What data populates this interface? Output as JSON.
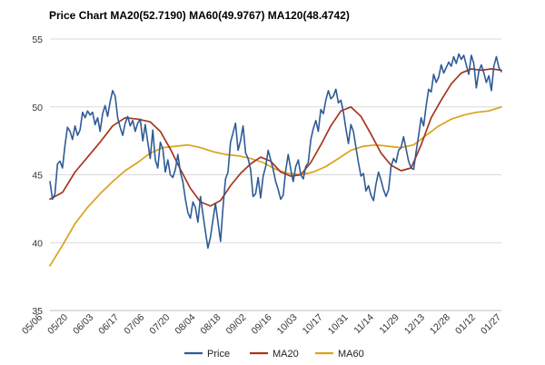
{
  "chart_data": {
    "type": "line",
    "title": "Price Chart MA20(52.7190) MA60(49.9767) MA120(48.4742)",
    "xlabel": "",
    "ylabel": "",
    "ylim": [
      35,
      55
    ],
    "yticks": [
      35,
      40,
      45,
      50,
      55
    ],
    "grid": true,
    "legend_position": "bottom",
    "x_tick_labels": [
      "05/06",
      "05/20",
      "06/03",
      "06/17",
      "07/06",
      "07/20",
      "08/04",
      "08/18",
      "09/02",
      "09/16",
      "10/03",
      "10/17",
      "10/31",
      "11/14",
      "11/29",
      "12/13",
      "12/28",
      "01/12",
      "01/27"
    ],
    "x_range": [
      0,
      180
    ],
    "series": [
      {
        "name": "Price",
        "color": "#2e5b96",
        "points": [
          [
            0,
            44.5
          ],
          [
            1,
            43.2
          ],
          [
            2,
            43.6
          ],
          [
            3,
            45.8
          ],
          [
            4,
            46.0
          ],
          [
            5,
            45.5
          ],
          [
            6,
            47.2
          ],
          [
            7,
            48.5
          ],
          [
            8,
            48.2
          ],
          [
            9,
            47.6
          ],
          [
            10,
            48.6
          ],
          [
            11,
            47.9
          ],
          [
            12,
            48.3
          ],
          [
            13,
            49.6
          ],
          [
            14,
            49.2
          ],
          [
            15,
            49.7
          ],
          [
            16,
            49.4
          ],
          [
            17,
            49.6
          ],
          [
            18,
            48.7
          ],
          [
            19,
            49.2
          ],
          [
            20,
            48.2
          ],
          [
            21,
            49.5
          ],
          [
            22,
            50.1
          ],
          [
            23,
            49.3
          ],
          [
            24,
            50.4
          ],
          [
            25,
            51.2
          ],
          [
            26,
            50.8
          ],
          [
            27,
            49.2
          ],
          [
            28,
            48.5
          ],
          [
            29,
            47.9
          ],
          [
            30,
            48.8
          ],
          [
            31,
            49.3
          ],
          [
            32,
            48.6
          ],
          [
            33,
            49.0
          ],
          [
            34,
            48.2
          ],
          [
            35,
            48.8
          ],
          [
            36,
            49.1
          ],
          [
            37,
            47.5
          ],
          [
            38,
            48.7
          ],
          [
            39,
            47.4
          ],
          [
            40,
            46.2
          ],
          [
            41,
            48.3
          ],
          [
            42,
            46.1
          ],
          [
            43,
            45.5
          ],
          [
            44,
            47.4
          ],
          [
            45,
            46.9
          ],
          [
            46,
            45.2
          ],
          [
            47,
            46.1
          ],
          [
            48,
            45.0
          ],
          [
            49,
            44.8
          ],
          [
            50,
            45.4
          ],
          [
            51,
            46.5
          ],
          [
            52,
            45.2
          ],
          [
            53,
            44.5
          ],
          [
            54,
            43.2
          ],
          [
            55,
            42.2
          ],
          [
            56,
            41.8
          ],
          [
            57,
            43.0
          ],
          [
            58,
            42.6
          ],
          [
            59,
            41.5
          ],
          [
            60,
            43.4
          ],
          [
            61,
            42.1
          ],
          [
            62,
            40.8
          ],
          [
            63,
            39.6
          ],
          [
            64,
            40.4
          ],
          [
            65,
            41.7
          ],
          [
            66,
            42.9
          ],
          [
            67,
            41.5
          ],
          [
            68,
            40.1
          ],
          [
            69,
            42.6
          ],
          [
            70,
            44.7
          ],
          [
            71,
            45.2
          ],
          [
            72,
            47.4
          ],
          [
            73,
            48.1
          ],
          [
            74,
            48.8
          ],
          [
            75,
            46.8
          ],
          [
            76,
            47.5
          ],
          [
            77,
            48.6
          ],
          [
            78,
            46.6
          ],
          [
            79,
            46.2
          ],
          [
            80,
            45.4
          ],
          [
            81,
            43.4
          ],
          [
            82,
            43.6
          ],
          [
            83,
            44.8
          ],
          [
            84,
            43.3
          ],
          [
            85,
            44.9
          ],
          [
            86,
            45.6
          ],
          [
            87,
            46.8
          ],
          [
            88,
            46.1
          ],
          [
            89,
            45.4
          ],
          [
            90,
            44.5
          ],
          [
            91,
            43.9
          ],
          [
            92,
            43.2
          ],
          [
            93,
            43.5
          ],
          [
            94,
            45.3
          ],
          [
            95,
            46.5
          ],
          [
            96,
            45.4
          ],
          [
            97,
            44.5
          ],
          [
            98,
            45.6
          ],
          [
            99,
            46.1
          ],
          [
            100,
            45.0
          ],
          [
            101,
            44.7
          ],
          [
            102,
            45.6
          ],
          [
            103,
            45.9
          ],
          [
            104,
            47.6
          ],
          [
            105,
            48.4
          ],
          [
            106,
            49.0
          ],
          [
            107,
            48.2
          ],
          [
            108,
            49.8
          ],
          [
            109,
            49.5
          ],
          [
            110,
            50.5
          ],
          [
            111,
            51.2
          ],
          [
            112,
            50.6
          ],
          [
            113,
            50.8
          ],
          [
            114,
            51.3
          ],
          [
            115,
            50.3
          ],
          [
            116,
            50.5
          ],
          [
            117,
            49.6
          ],
          [
            118,
            48.4
          ],
          [
            119,
            47.3
          ],
          [
            120,
            48.7
          ],
          [
            121,
            48.2
          ],
          [
            122,
            47.0
          ],
          [
            123,
            45.9
          ],
          [
            124,
            44.9
          ],
          [
            125,
            45.1
          ],
          [
            126,
            43.8
          ],
          [
            127,
            44.2
          ],
          [
            128,
            43.5
          ],
          [
            129,
            43.1
          ],
          [
            130,
            44.3
          ],
          [
            131,
            45.2
          ],
          [
            132,
            44.6
          ],
          [
            133,
            43.9
          ],
          [
            134,
            43.4
          ],
          [
            135,
            43.9
          ],
          [
            136,
            45.6
          ],
          [
            137,
            46.2
          ],
          [
            138,
            45.9
          ],
          [
            139,
            46.8
          ],
          [
            140,
            47.0
          ],
          [
            141,
            47.8
          ],
          [
            142,
            46.9
          ],
          [
            143,
            46.0
          ],
          [
            144,
            45.5
          ],
          [
            145,
            45.4
          ],
          [
            146,
            46.7
          ],
          [
            147,
            47.9
          ],
          [
            148,
            49.2
          ],
          [
            149,
            48.6
          ],
          [
            150,
            50.1
          ],
          [
            151,
            51.3
          ],
          [
            152,
            51.1
          ],
          [
            153,
            52.4
          ],
          [
            154,
            51.8
          ],
          [
            155,
            52.2
          ],
          [
            156,
            53.1
          ],
          [
            157,
            52.5
          ],
          [
            158,
            52.9
          ],
          [
            159,
            53.3
          ],
          [
            160,
            53.0
          ],
          [
            161,
            53.7
          ],
          [
            162,
            53.2
          ],
          [
            163,
            53.9
          ],
          [
            164,
            53.5
          ],
          [
            165,
            53.8
          ],
          [
            166,
            53.1
          ],
          [
            167,
            52.4
          ],
          [
            168,
            53.8
          ],
          [
            169,
            53.2
          ],
          [
            170,
            51.4
          ],
          [
            171,
            52.6
          ],
          [
            172,
            53.1
          ],
          [
            173,
            52.5
          ],
          [
            174,
            51.8
          ],
          [
            175,
            52.3
          ],
          [
            176,
            51.2
          ],
          [
            177,
            53.0
          ],
          [
            178,
            53.7
          ],
          [
            179,
            52.9
          ],
          [
            180,
            52.6
          ]
        ]
      },
      {
        "name": "MA20",
        "color": "#a6361f",
        "points": [
          [
            0,
            43.2
          ],
          [
            5,
            43.7
          ],
          [
            10,
            45.2
          ],
          [
            15,
            46.3
          ],
          [
            20,
            47.4
          ],
          [
            25,
            48.6
          ],
          [
            30,
            49.2
          ],
          [
            35,
            49.1
          ],
          [
            40,
            48.9
          ],
          [
            44,
            48.2
          ],
          [
            48,
            46.9
          ],
          [
            52,
            45.4
          ],
          [
            56,
            44.0
          ],
          [
            60,
            43.0
          ],
          [
            64,
            42.7
          ],
          [
            68,
            43.1
          ],
          [
            72,
            44.2
          ],
          [
            76,
            45.1
          ],
          [
            80,
            45.8
          ],
          [
            84,
            46.3
          ],
          [
            88,
            46.0
          ],
          [
            92,
            45.2
          ],
          [
            96,
            44.9
          ],
          [
            100,
            45.0
          ],
          [
            104,
            45.9
          ],
          [
            108,
            47.2
          ],
          [
            112,
            48.6
          ],
          [
            116,
            49.7
          ],
          [
            120,
            50.0
          ],
          [
            124,
            49.3
          ],
          [
            128,
            48.0
          ],
          [
            132,
            46.6
          ],
          [
            136,
            45.7
          ],
          [
            140,
            45.3
          ],
          [
            144,
            45.5
          ],
          [
            148,
            47.2
          ],
          [
            152,
            49.2
          ],
          [
            156,
            50.5
          ],
          [
            160,
            51.7
          ],
          [
            164,
            52.5
          ],
          [
            168,
            52.8
          ],
          [
            172,
            52.7
          ],
          [
            176,
            52.8
          ],
          [
            180,
            52.7
          ]
        ]
      },
      {
        "name": "MA60",
        "color": "#d9a31a",
        "points": [
          [
            0,
            38.3
          ],
          [
            5,
            39.8
          ],
          [
            10,
            41.4
          ],
          [
            15,
            42.6
          ],
          [
            20,
            43.6
          ],
          [
            25,
            44.5
          ],
          [
            30,
            45.3
          ],
          [
            35,
            45.9
          ],
          [
            40,
            46.6
          ],
          [
            45,
            47.0
          ],
          [
            50,
            47.1
          ],
          [
            55,
            47.2
          ],
          [
            60,
            47.0
          ],
          [
            65,
            46.7
          ],
          [
            70,
            46.5
          ],
          [
            75,
            46.4
          ],
          [
            80,
            46.2
          ],
          [
            85,
            45.9
          ],
          [
            90,
            45.4
          ],
          [
            95,
            45.1
          ],
          [
            100,
            45.0
          ],
          [
            105,
            45.2
          ],
          [
            110,
            45.6
          ],
          [
            115,
            46.2
          ],
          [
            120,
            46.8
          ],
          [
            125,
            47.1
          ],
          [
            130,
            47.2
          ],
          [
            135,
            47.1
          ],
          [
            140,
            47.0
          ],
          [
            145,
            47.2
          ],
          [
            150,
            47.9
          ],
          [
            155,
            48.6
          ],
          [
            160,
            49.1
          ],
          [
            165,
            49.4
          ],
          [
            170,
            49.6
          ],
          [
            175,
            49.7
          ],
          [
            180,
            50.0
          ]
        ]
      }
    ]
  }
}
